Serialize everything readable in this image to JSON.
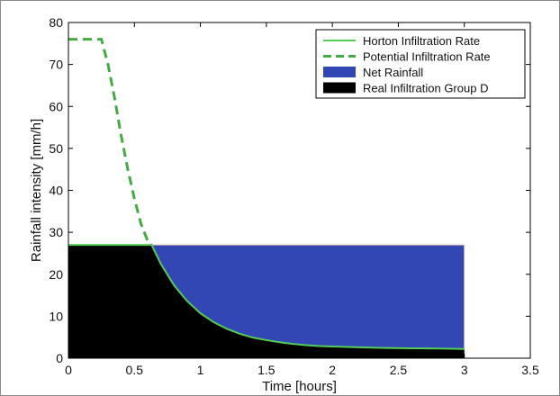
{
  "chart_data": {
    "type": "area",
    "xlabel": "Time [hours]",
    "ylabel": "Rainfall intensity [mm/h]",
    "xlim": [
      0,
      3.5
    ],
    "ylim": [
      0,
      80
    ],
    "xticks": [
      0,
      0.5,
      1,
      1.5,
      2,
      2.5,
      3,
      3.5
    ],
    "xtick_labels": [
      "0",
      "0.5",
      "1",
      "1.5",
      "2",
      "2.5",
      "3",
      "3.5"
    ],
    "yticks": [
      0,
      10,
      20,
      30,
      40,
      50,
      60,
      70,
      80
    ],
    "ytick_labels": [
      "0",
      "10",
      "20",
      "30",
      "40",
      "50",
      "60",
      "70",
      "80"
    ],
    "grid": false,
    "legend_position": "top-right",
    "colors": {
      "horton": "#55cc55",
      "potential": "#44aa44",
      "net_rainfall": "#3347b4",
      "real_infiltration": "#000000",
      "rainfall_edge": "#e8c8a8"
    },
    "series": [
      {
        "name": "Horton Infiltration Rate",
        "style": "solid-line",
        "x": [
          0,
          0.63,
          0.7,
          0.8,
          0.9,
          1.0,
          1.1,
          1.2,
          1.3,
          1.4,
          1.5,
          1.6,
          1.7,
          1.8,
          1.9,
          2.0,
          2.2,
          2.4,
          2.6,
          2.8,
          3.0
        ],
        "y": [
          27,
          27,
          22.5,
          17.4,
          13.6,
          10.7,
          8.6,
          7.0,
          5.8,
          4.9,
          4.3,
          3.8,
          3.4,
          3.1,
          2.9,
          2.8,
          2.6,
          2.45,
          2.35,
          2.3,
          2.2
        ]
      },
      {
        "name": "Potential Infiltration Rate",
        "style": "dashed-line",
        "x": [
          0,
          0.25,
          0.3,
          0.35,
          0.4,
          0.45,
          0.5,
          0.55,
          0.6,
          0.63
        ],
        "y": [
          76,
          76,
          70,
          62,
          53,
          45,
          38,
          32,
          28,
          27
        ]
      },
      {
        "name": "Net Rainfall",
        "style": "filled-area",
        "x": [
          0,
          3.0
        ],
        "y": [
          27,
          27
        ]
      },
      {
        "name": "Real Infiltration Group D",
        "style": "filled-area",
        "x": [
          0,
          0.63,
          0.7,
          0.8,
          0.9,
          1.0,
          1.1,
          1.2,
          1.3,
          1.4,
          1.5,
          1.6,
          1.7,
          1.8,
          1.9,
          2.0,
          2.2,
          2.4,
          2.6,
          2.8,
          3.0
        ],
        "y": [
          27,
          27,
          22.5,
          17.4,
          13.6,
          10.7,
          8.6,
          7.0,
          5.8,
          4.9,
          4.3,
          3.8,
          3.4,
          3.1,
          2.9,
          2.8,
          2.6,
          2.45,
          2.35,
          2.3,
          2.2
        ]
      }
    ]
  }
}
